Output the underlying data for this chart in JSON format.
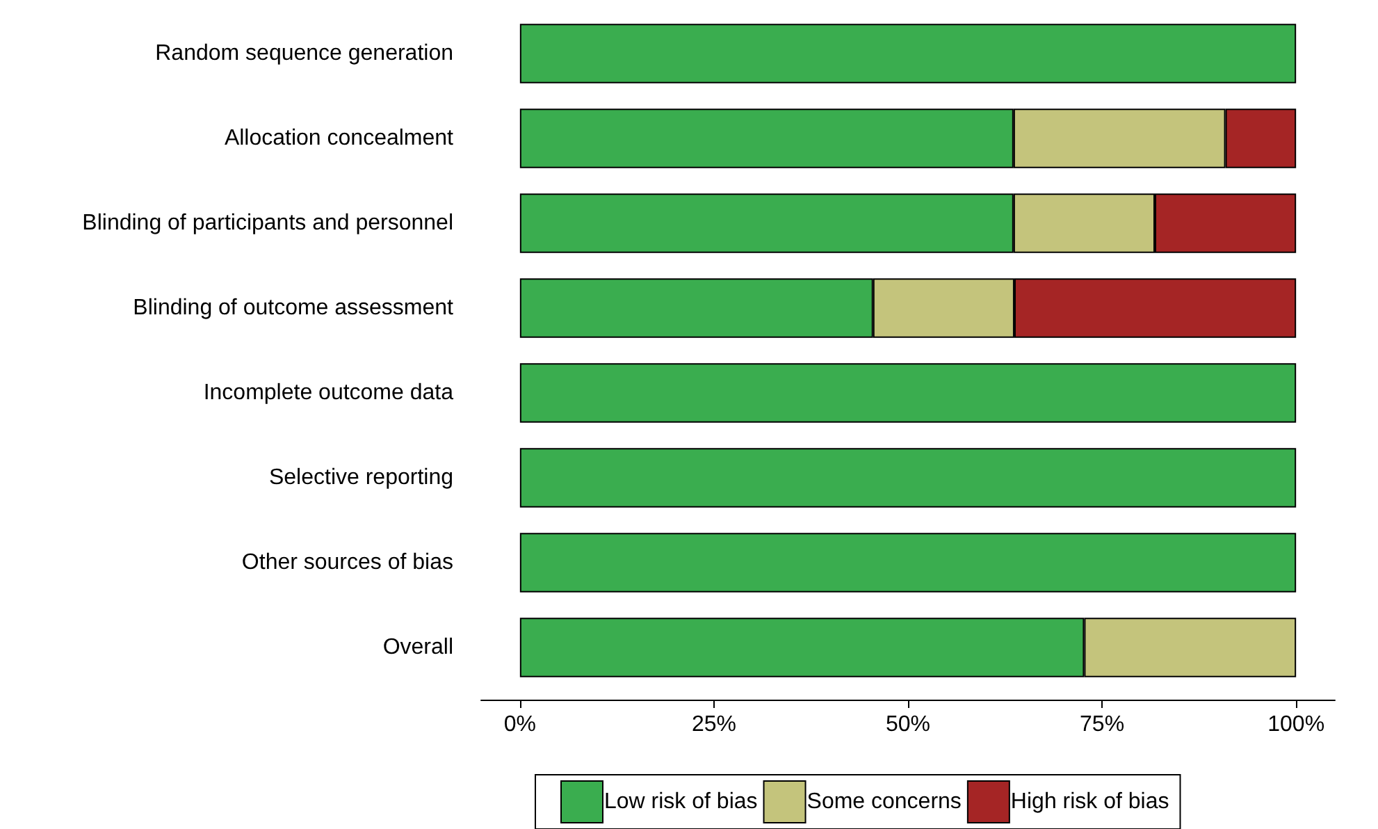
{
  "chart_data": {
    "type": "bar",
    "orientation": "horizontal",
    "stacked": true,
    "categories": [
      "Random sequence generation",
      "Allocation concealment",
      "Blinding of participants and personnel",
      "Blinding of outcome assessment",
      "Incomplete outcome data",
      "Selective reporting",
      "Other sources of bias",
      "Overall"
    ],
    "series": [
      {
        "name": "Low risk of bias",
        "color": "#3aad4f",
        "values": [
          100,
          63.6,
          63.6,
          45.5,
          100,
          100,
          100,
          72.7
        ]
      },
      {
        "name": "Some concerns",
        "color": "#c4c47c",
        "values": [
          null,
          27.3,
          18.2,
          18.2,
          null,
          null,
          null,
          27.3
        ]
      },
      {
        "name": "High risk of bias",
        "color": "#a52525",
        "values": [
          null,
          9.1,
          18.2,
          36.3,
          null,
          null,
          null,
          null
        ]
      }
    ],
    "xlim": [
      -5,
      105
    ],
    "xticks": [
      {
        "value": 0,
        "label": "0%"
      },
      {
        "value": 25,
        "label": "25%"
      },
      {
        "value": 50,
        "label": "50%"
      },
      {
        "value": 75,
        "label": "75%"
      },
      {
        "value": 100,
        "label": "100%"
      }
    ],
    "grid": false,
    "legend": "bottom"
  }
}
